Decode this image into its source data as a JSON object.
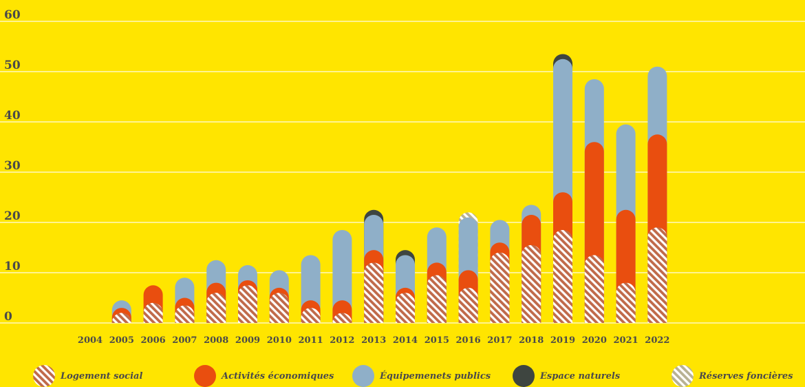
{
  "chart_data": {
    "type": "bar",
    "stacked": true,
    "categories": [
      "2004",
      "2005",
      "2006",
      "2007",
      "2008",
      "2009",
      "2010",
      "2011",
      "2012",
      "2013",
      "2014",
      "2015",
      "2016",
      "2017",
      "2018",
      "2019",
      "2020",
      "2021",
      "2022"
    ],
    "series": [
      {
        "name": "Logement social",
        "color": "#C06A4A",
        "pattern": "hatch-brown",
        "values": [
          0,
          2,
          4,
          3.5,
          6,
          7.5,
          6,
          3,
          2,
          12,
          6,
          9.5,
          7,
          14,
          15.5,
          18.5,
          13.5,
          8,
          19
        ]
      },
      {
        "name": "Activités économiques",
        "color": "#E94E0F",
        "pattern": "solid",
        "values": [
          0,
          1,
          3.5,
          1.5,
          2,
          1,
          1,
          1.5,
          2.5,
          2.5,
          1,
          2.5,
          3.5,
          2,
          6,
          7.5,
          22.5,
          14.5,
          18.5
        ]
      },
      {
        "name": "Équipemenets publics",
        "color": "#8FAFC8",
        "pattern": "solid",
        "values": [
          0,
          1.5,
          0,
          4,
          4.5,
          3,
          3.5,
          9,
          14,
          7,
          6.5,
          7,
          10.5,
          4.5,
          2,
          26.5,
          12.5,
          17,
          13.5
        ]
      },
      {
        "name": "Espace naturels",
        "color": "#3E4540",
        "pattern": "solid",
        "values": [
          0,
          0,
          0,
          0,
          0,
          0,
          0,
          0,
          0,
          1,
          1,
          0,
          0,
          0,
          0,
          1,
          0,
          0,
          0
        ]
      },
      {
        "name": "Réserves foncières",
        "color": "#C9B98A",
        "pattern": "hatch-grey",
        "values": [
          0,
          0,
          0,
          0,
          0,
          0,
          0,
          0,
          0,
          0,
          0,
          0,
          1,
          0,
          0,
          0,
          0,
          0,
          0
        ]
      }
    ],
    "yticks": [
      0,
      10,
      20,
      30,
      40,
      50,
      60
    ],
    "ylim": [
      0,
      60
    ],
    "grid": true,
    "legend_position": "bottom"
  }
}
